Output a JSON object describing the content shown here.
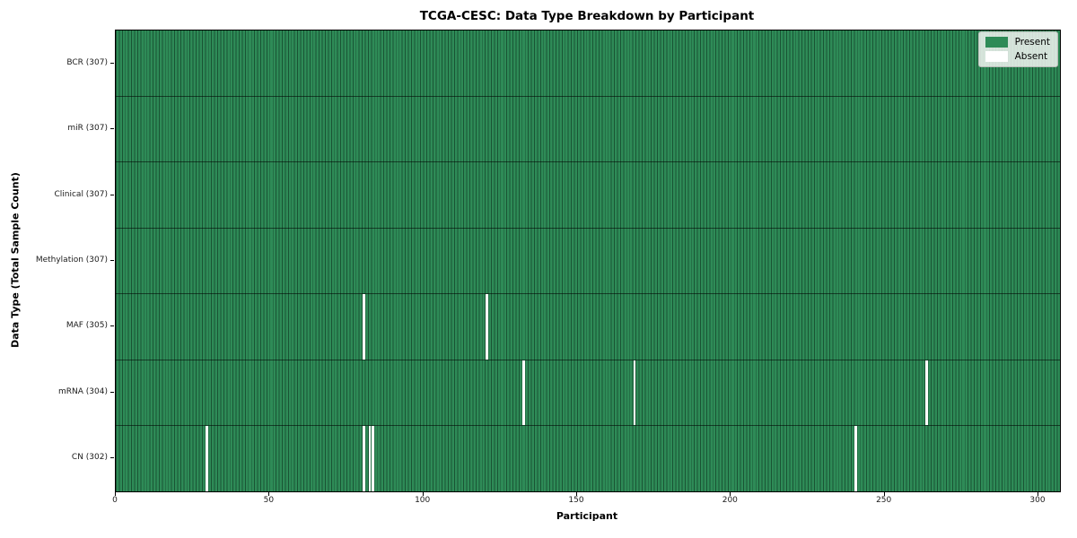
{
  "title": "TCGA-CESC: Data Type Breakdown by Participant",
  "x_axis": {
    "label": "Participant",
    "ticks": [
      0,
      50,
      100,
      150,
      200,
      250,
      300
    ]
  },
  "y_axis": {
    "label": "Data Type (Total Sample Count)"
  },
  "legend": {
    "items": [
      {
        "label": "Present",
        "color": "#2e8b57"
      },
      {
        "label": "Absent",
        "color": "#ffffff"
      }
    ]
  },
  "chart_data": {
    "type": "heatmap",
    "title": "TCGA-CESC: Data Type Breakdown by Participant",
    "xlabel": "Participant",
    "ylabel": "Data Type (Total Sample Count)",
    "n_participants": 307,
    "x_range": [
      0,
      307
    ],
    "x_ticks": [
      0,
      50,
      100,
      150,
      200,
      250,
      300
    ],
    "grid": false,
    "legend_position": "upper right",
    "colors": {
      "present": "#2e8b57",
      "absent": "#ffffff"
    },
    "rows": [
      {
        "data_type": "BCR",
        "label": "BCR (307)",
        "total": 307,
        "absent_participants": []
      },
      {
        "data_type": "miR",
        "label": "miR (307)",
        "total": 307,
        "absent_participants": []
      },
      {
        "data_type": "Clinical",
        "label": "Clinical (307)",
        "total": 307,
        "absent_participants": []
      },
      {
        "data_type": "Methylation",
        "label": "Methylation (307)",
        "total": 307,
        "absent_participants": []
      },
      {
        "data_type": "MAF",
        "label": "MAF (305)",
        "total": 305,
        "absent_participants": [
          80,
          120
        ]
      },
      {
        "data_type": "mRNA",
        "label": "mRNA (304)",
        "total": 304,
        "absent_participants": [
          132,
          168,
          263
        ]
      },
      {
        "data_type": "CN",
        "label": "CN (302)",
        "total": 302,
        "absent_participants": [
          29,
          80,
          82,
          83,
          240
        ]
      }
    ]
  }
}
